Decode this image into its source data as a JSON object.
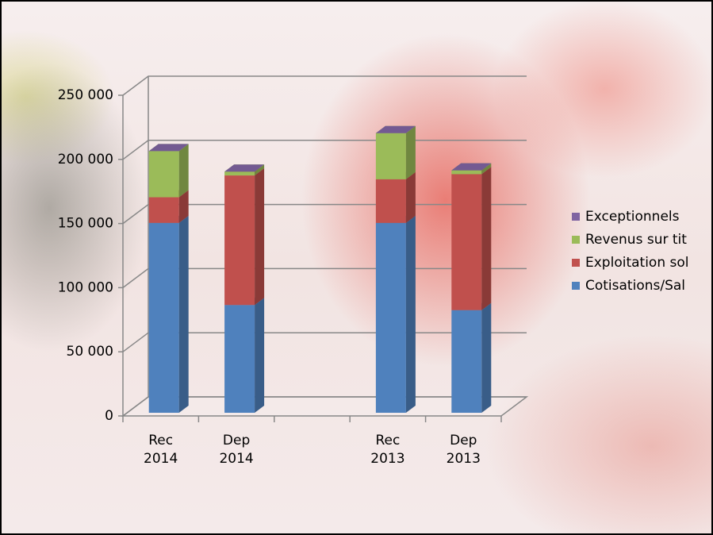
{
  "chart_data": {
    "type": "bar3d_stacked",
    "categories": [
      "Rec\n2014",
      "Dep\n2014",
      null,
      "Rec\n2013",
      "Dep\n2013"
    ],
    "series": [
      {
        "name": "Cotisations/Sal",
        "color": "#4f81bd",
        "values": [
          148000,
          84000,
          null,
          148000,
          80000
        ]
      },
      {
        "name": "Exploitation sol",
        "color": "#c0504d",
        "values": [
          20000,
          101000,
          null,
          34000,
          106000
        ]
      },
      {
        "name": "Revenus sur tit",
        "color": "#9bbb59",
        "values": [
          36000,
          3000,
          null,
          36000,
          3000
        ]
      },
      {
        "name": "Exceptionnels",
        "color": "#8064a2",
        "values": [
          0,
          0,
          null,
          0,
          0
        ]
      }
    ],
    "ylim": [
      0,
      250000
    ],
    "yticks": [
      0,
      {
        "value": 50000,
        "label": "50 000"
      },
      {
        "value": 100000,
        "label": "100 000"
      },
      {
        "value": 150000,
        "label": "150 000"
      },
      {
        "value": 200000,
        "label": "200 000"
      },
      {
        "value": 250000,
        "label": "250 000"
      }
    ],
    "grid": true
  }
}
